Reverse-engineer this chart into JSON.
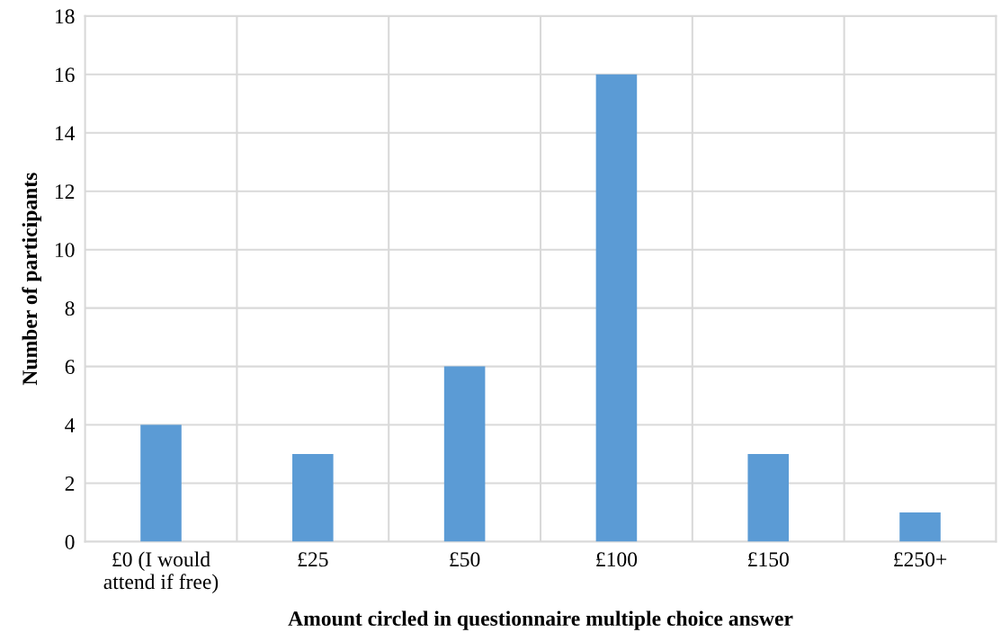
{
  "chart_data": {
    "type": "bar",
    "xlabel": "Amount circled in questionnaire multiple choice answer",
    "ylabel": "Number of participants",
    "categories": [
      "£0 (I would attend if free)",
      "£25",
      "£50",
      "£100",
      "£150",
      "£250+"
    ],
    "values": [
      4,
      3,
      6,
      16,
      3,
      1
    ],
    "color": "#5b9bd5",
    "ylim": [
      0,
      18
    ],
    "yticks": [
      0,
      2,
      4,
      6,
      8,
      10,
      12,
      14,
      16,
      18
    ],
    "grid": true
  }
}
